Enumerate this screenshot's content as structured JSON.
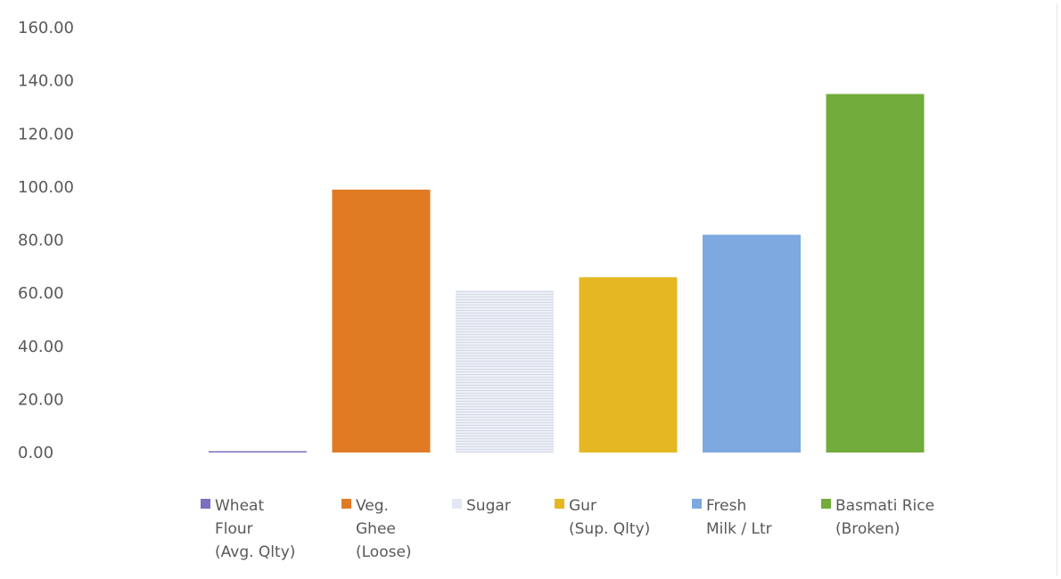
{
  "chart_data": {
    "type": "bar",
    "title": "",
    "xlabel": "",
    "ylabel": "",
    "ylim": [
      0,
      160
    ],
    "yticks": [
      "0.00",
      "20.00",
      "40.00",
      "60.00",
      "80.00",
      "100.00",
      "120.00",
      "140.00",
      "160.00"
    ],
    "grid": false,
    "legend_position": "bottom",
    "series": [
      {
        "name": "Wheat Flour (Avg. Qlty)",
        "lines": [
          "Wheat",
          "Flour",
          "(Avg. Qlty)"
        ],
        "value": 0.5,
        "color": "#7b6fbf"
      },
      {
        "name": "Veg. Ghee (Loose)",
        "lines": [
          "Veg.",
          "Ghee",
          "(Loose)"
        ],
        "value": 99,
        "color": "#e07b24"
      },
      {
        "name": "Sugar",
        "lines": [
          "Sugar"
        ],
        "value": 61,
        "color": "#e3e7f3"
      },
      {
        "name": "Gur (Sup. Qlty)",
        "lines": [
          "Gur",
          "(Sup. Qlty)"
        ],
        "value": 66,
        "color": "#e5b823"
      },
      {
        "name": "Fresh Milk / Ltr",
        "lines": [
          "Fresh",
          "Milk / Ltr"
        ],
        "value": 82,
        "color": "#7ea8e0"
      },
      {
        "name": "Basmati Rice (Broken)",
        "lines": [
          "Basmati Rice",
          "(Broken)"
        ],
        "value": 135,
        "color": "#72ac3c"
      }
    ]
  }
}
